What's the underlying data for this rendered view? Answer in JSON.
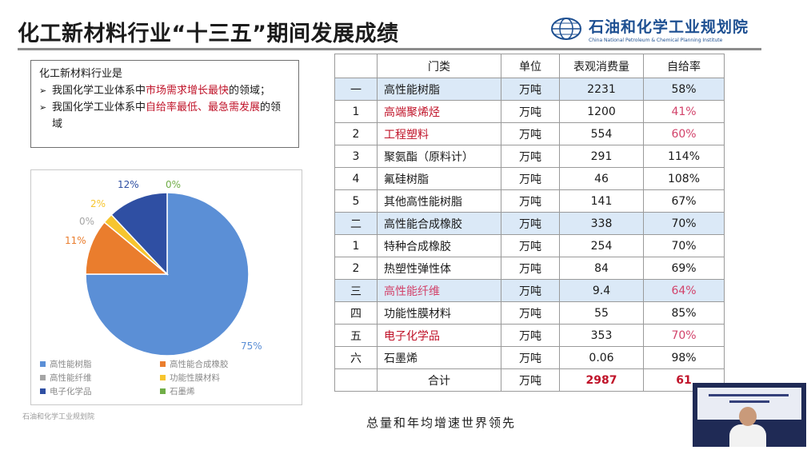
{
  "header": {
    "title": "化工新材料行业“十三五”期间发展成绩",
    "logo_name": "石油和化学工业规划院",
    "logo_subtitle": "China National Petroleum & Chemical Planning Institute"
  },
  "callout": {
    "intro": "化工新材料行业是",
    "bullets": [
      {
        "pre": "我国化学工业体系中",
        "highlight": "市场需求增长最快",
        "post": "的领域；"
      },
      {
        "pre": "我国化学工业体系中",
        "highlight": "自给率最低、最急需发展",
        "post": "的领域"
      }
    ]
  },
  "chart_data": {
    "type": "pie",
    "slices": [
      {
        "name": "高性能树脂",
        "value": 75,
        "label": "75%",
        "color": "#5b8fd6"
      },
      {
        "name": "高性能合成橡胶",
        "value": 11,
        "label": "11%",
        "color": "#ea7d2d"
      },
      {
        "name": "高性能纤维",
        "value": 0,
        "label": "0%",
        "color": "#a5a5a5"
      },
      {
        "name": "功能性膜材料",
        "value": 2,
        "label": "2%",
        "color": "#f7c52e"
      },
      {
        "name": "电子化学品",
        "value": 12,
        "label": "12%",
        "color": "#2f4fa3"
      },
      {
        "name": "石墨烯",
        "value": 0,
        "label": "0%",
        "color": "#70ad47"
      }
    ],
    "legend_placement": "bottom"
  },
  "credit": "石油和化学工业规划院",
  "table": {
    "headers": [
      "",
      "门类",
      "单位",
      "表观消费量",
      "自给率"
    ],
    "rows": [
      {
        "idx": "一",
        "name": "高性能树脂",
        "unit": "万吨",
        "consumption": "2231",
        "rate": "58%",
        "category": true,
        "name_color": "",
        "rate_color": ""
      },
      {
        "idx": "1",
        "name": "高端聚烯烃",
        "unit": "万吨",
        "consumption": "1200",
        "rate": "41%",
        "category": false,
        "name_color": "red",
        "rate_color": "pink"
      },
      {
        "idx": "2",
        "name": "工程塑料",
        "unit": "万吨",
        "consumption": "554",
        "rate": "60%",
        "category": false,
        "name_color": "red",
        "rate_color": "pink"
      },
      {
        "idx": "3",
        "name": "聚氨酯（原料计）",
        "unit": "万吨",
        "consumption": "291",
        "rate": "114%",
        "category": false,
        "name_color": "",
        "rate_color": ""
      },
      {
        "idx": "4",
        "name": "氟硅树脂",
        "unit": "万吨",
        "consumption": "46",
        "rate": "108%",
        "category": false,
        "name_color": "",
        "rate_color": ""
      },
      {
        "idx": "5",
        "name": "其他高性能树脂",
        "unit": "万吨",
        "consumption": "141",
        "rate": "67%",
        "category": false,
        "name_color": "",
        "rate_color": ""
      },
      {
        "idx": "二",
        "name": "高性能合成橡胶",
        "unit": "万吨",
        "consumption": "338",
        "rate": "70%",
        "category": true,
        "name_color": "",
        "rate_color": ""
      },
      {
        "idx": "1",
        "name": "特种合成橡胶",
        "unit": "万吨",
        "consumption": "254",
        "rate": "70%",
        "category": false,
        "name_color": "",
        "rate_color": ""
      },
      {
        "idx": "2",
        "name": "热塑性弹性体",
        "unit": "万吨",
        "consumption": "84",
        "rate": "69%",
        "category": false,
        "name_color": "",
        "rate_color": ""
      },
      {
        "idx": "三",
        "name": "高性能纤维",
        "unit": "万吨",
        "consumption": "9.4",
        "rate": "64%",
        "category": true,
        "name_color": "pink",
        "rate_color": "pink"
      },
      {
        "idx": "四",
        "name": "功能性膜材料",
        "unit": "万吨",
        "consumption": "55",
        "rate": "85%",
        "category": false,
        "name_color": "",
        "rate_color": ""
      },
      {
        "idx": "五",
        "name": "电子化学品",
        "unit": "万吨",
        "consumption": "353",
        "rate": "70%",
        "category": false,
        "name_color": "red",
        "rate_color": "pink"
      },
      {
        "idx": "六",
        "name": "石墨烯",
        "unit": "万吨",
        "consumption": "0.06",
        "rate": "98%",
        "category": false,
        "name_color": "",
        "rate_color": ""
      }
    ],
    "total": {
      "label": "合计",
      "unit": "万吨",
      "consumption": "2987",
      "rate": "61"
    }
  },
  "caption": "总量和年均增速世界领先"
}
